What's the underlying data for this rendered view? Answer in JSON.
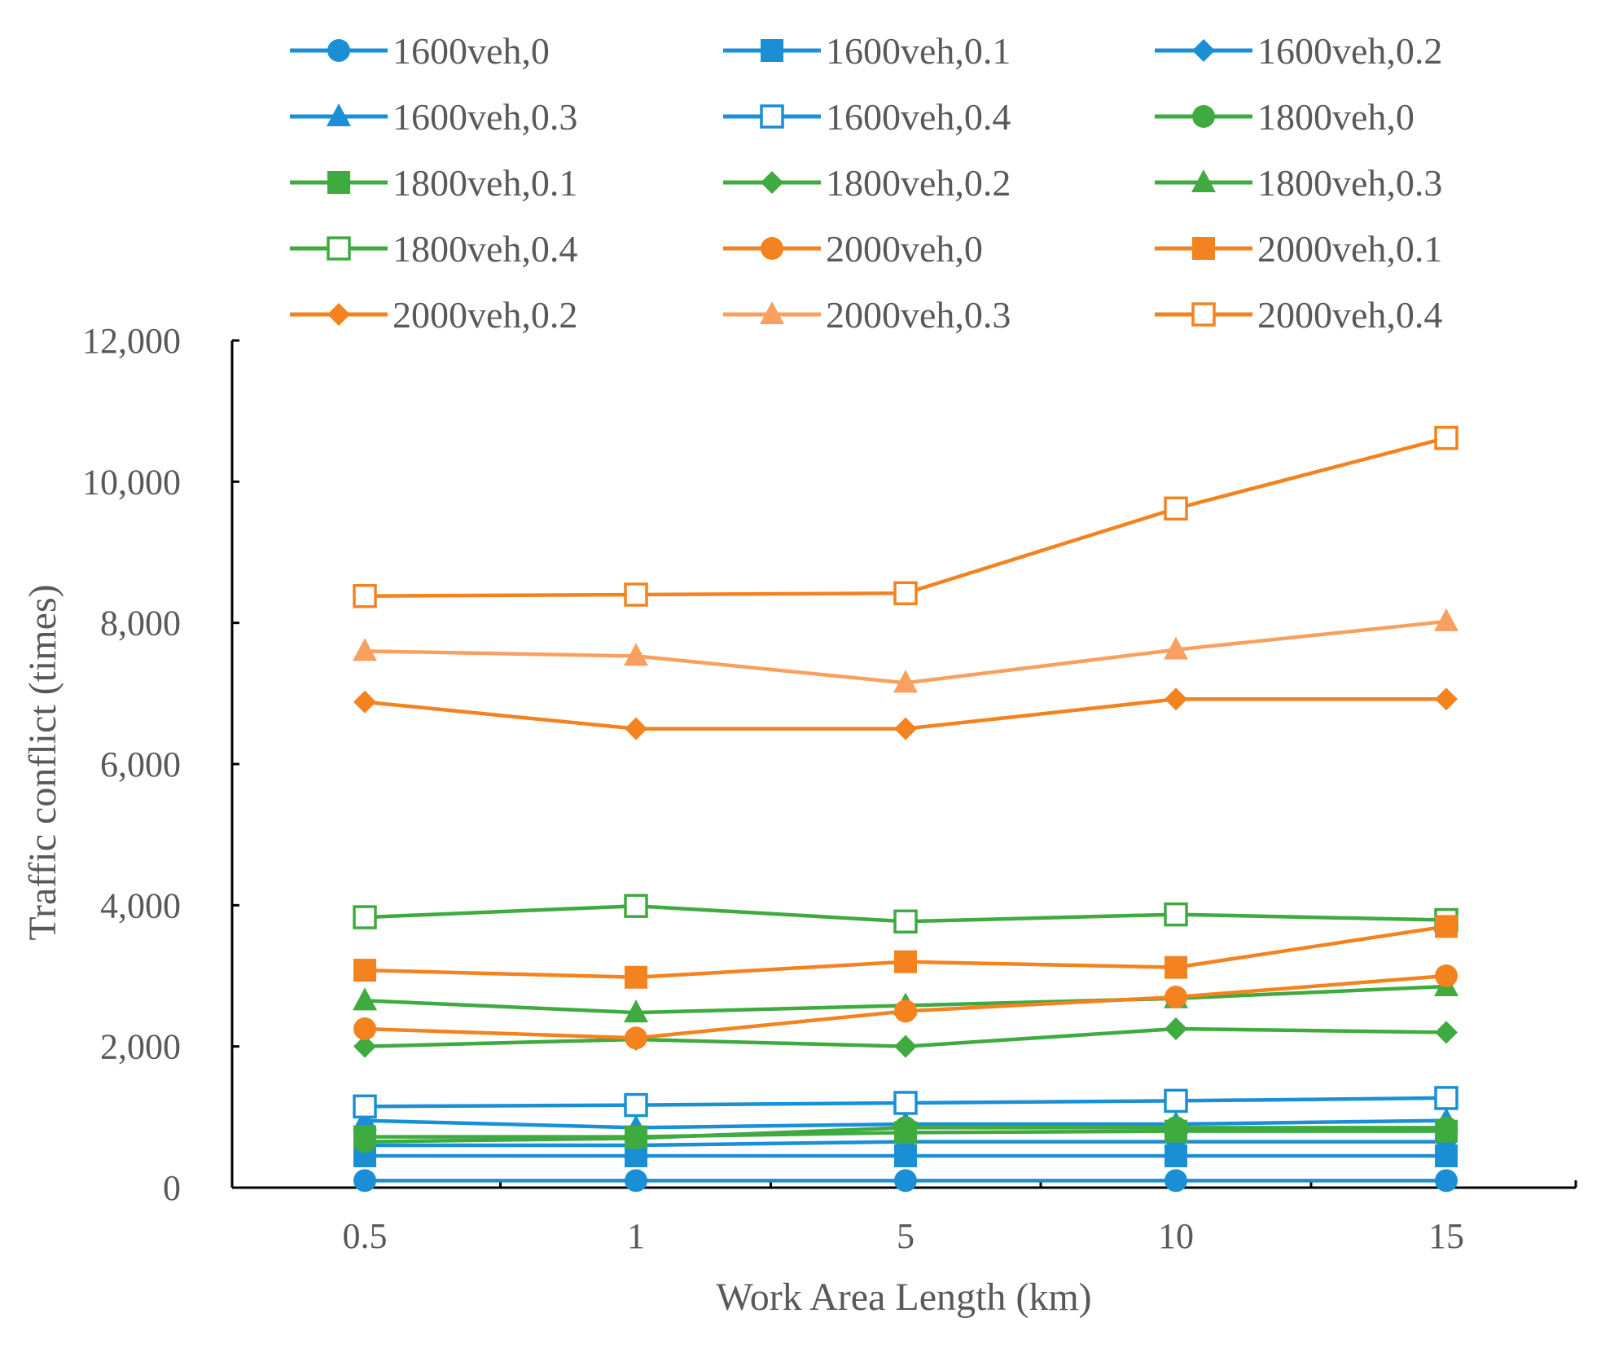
{
  "chart_data": {
    "type": "line",
    "title": "",
    "xlabel": "Work Area Length (km)",
    "ylabel": "Traffic conflict (times)",
    "categories": [
      "0.5",
      "1",
      "5",
      "10",
      "15"
    ],
    "ylim": [
      0,
      12000
    ],
    "yticks": [
      0,
      2000,
      4000,
      6000,
      8000,
      10000,
      12000
    ],
    "ytick_labels": [
      "0",
      "2,000",
      "4,000",
      "6,000",
      "8,000",
      "10,000",
      "12,000"
    ],
    "grid": false,
    "legend_position": "top",
    "series": [
      {
        "name": "1600veh,0",
        "color": "#1a8fd6",
        "marker": "circle",
        "values": [
          100,
          100,
          100,
          100,
          100
        ]
      },
      {
        "name": "1600veh,0.1",
        "color": "#1a8fd6",
        "marker": "square",
        "values": [
          450,
          450,
          450,
          450,
          450
        ]
      },
      {
        "name": "1600veh,0.2",
        "color": "#1a8fd6",
        "marker": "diamond",
        "values": [
          600,
          600,
          650,
          650,
          650
        ]
      },
      {
        "name": "1600veh,0.3",
        "color": "#1a8fd6",
        "marker": "triangle",
        "values": [
          950,
          850,
          900,
          900,
          950
        ]
      },
      {
        "name": "1600veh,0.4",
        "color": "#1a8fd6",
        "marker": "square-open",
        "values": [
          1150,
          1170,
          1200,
          1230,
          1270
        ]
      },
      {
        "name": "1800veh,0",
        "color": "#3faa3f",
        "marker": "circle",
        "values": [
          650,
          700,
          850,
          850,
          850
        ]
      },
      {
        "name": "1800veh,0.1",
        "color": "#3faa3f",
        "marker": "square",
        "values": [
          720,
          720,
          780,
          800,
          800
        ]
      },
      {
        "name": "1800veh,0.2",
        "color": "#3faa3f",
        "marker": "diamond",
        "values": [
          2000,
          2100,
          2000,
          2250,
          2200
        ]
      },
      {
        "name": "1800veh,0.3",
        "color": "#3faa3f",
        "marker": "triangle",
        "values": [
          2650,
          2480,
          2580,
          2680,
          2850
        ]
      },
      {
        "name": "1800veh,0.4",
        "color": "#3faa3f",
        "marker": "square-open",
        "values": [
          3830,
          3990,
          3770,
          3870,
          3790
        ]
      },
      {
        "name": "2000veh,0",
        "color": "#f4821f",
        "marker": "circle",
        "values": [
          2250,
          2120,
          2500,
          2700,
          3000
        ]
      },
      {
        "name": "2000veh,0.1",
        "color": "#f4821f",
        "marker": "square",
        "values": [
          3080,
          2980,
          3200,
          3120,
          3700
        ]
      },
      {
        "name": "2000veh,0.2",
        "color": "#f4821f",
        "marker": "diamond",
        "values": [
          6880,
          6500,
          6500,
          6920,
          6920
        ]
      },
      {
        "name": "2000veh,0.3",
        "color": "#f9a060",
        "marker": "triangle",
        "values": [
          7600,
          7530,
          7150,
          7620,
          8020
        ]
      },
      {
        "name": "2000veh,0.4",
        "color": "#f4821f",
        "marker": "square-open",
        "values": [
          8380,
          8400,
          8420,
          9620,
          10620
        ]
      }
    ]
  }
}
